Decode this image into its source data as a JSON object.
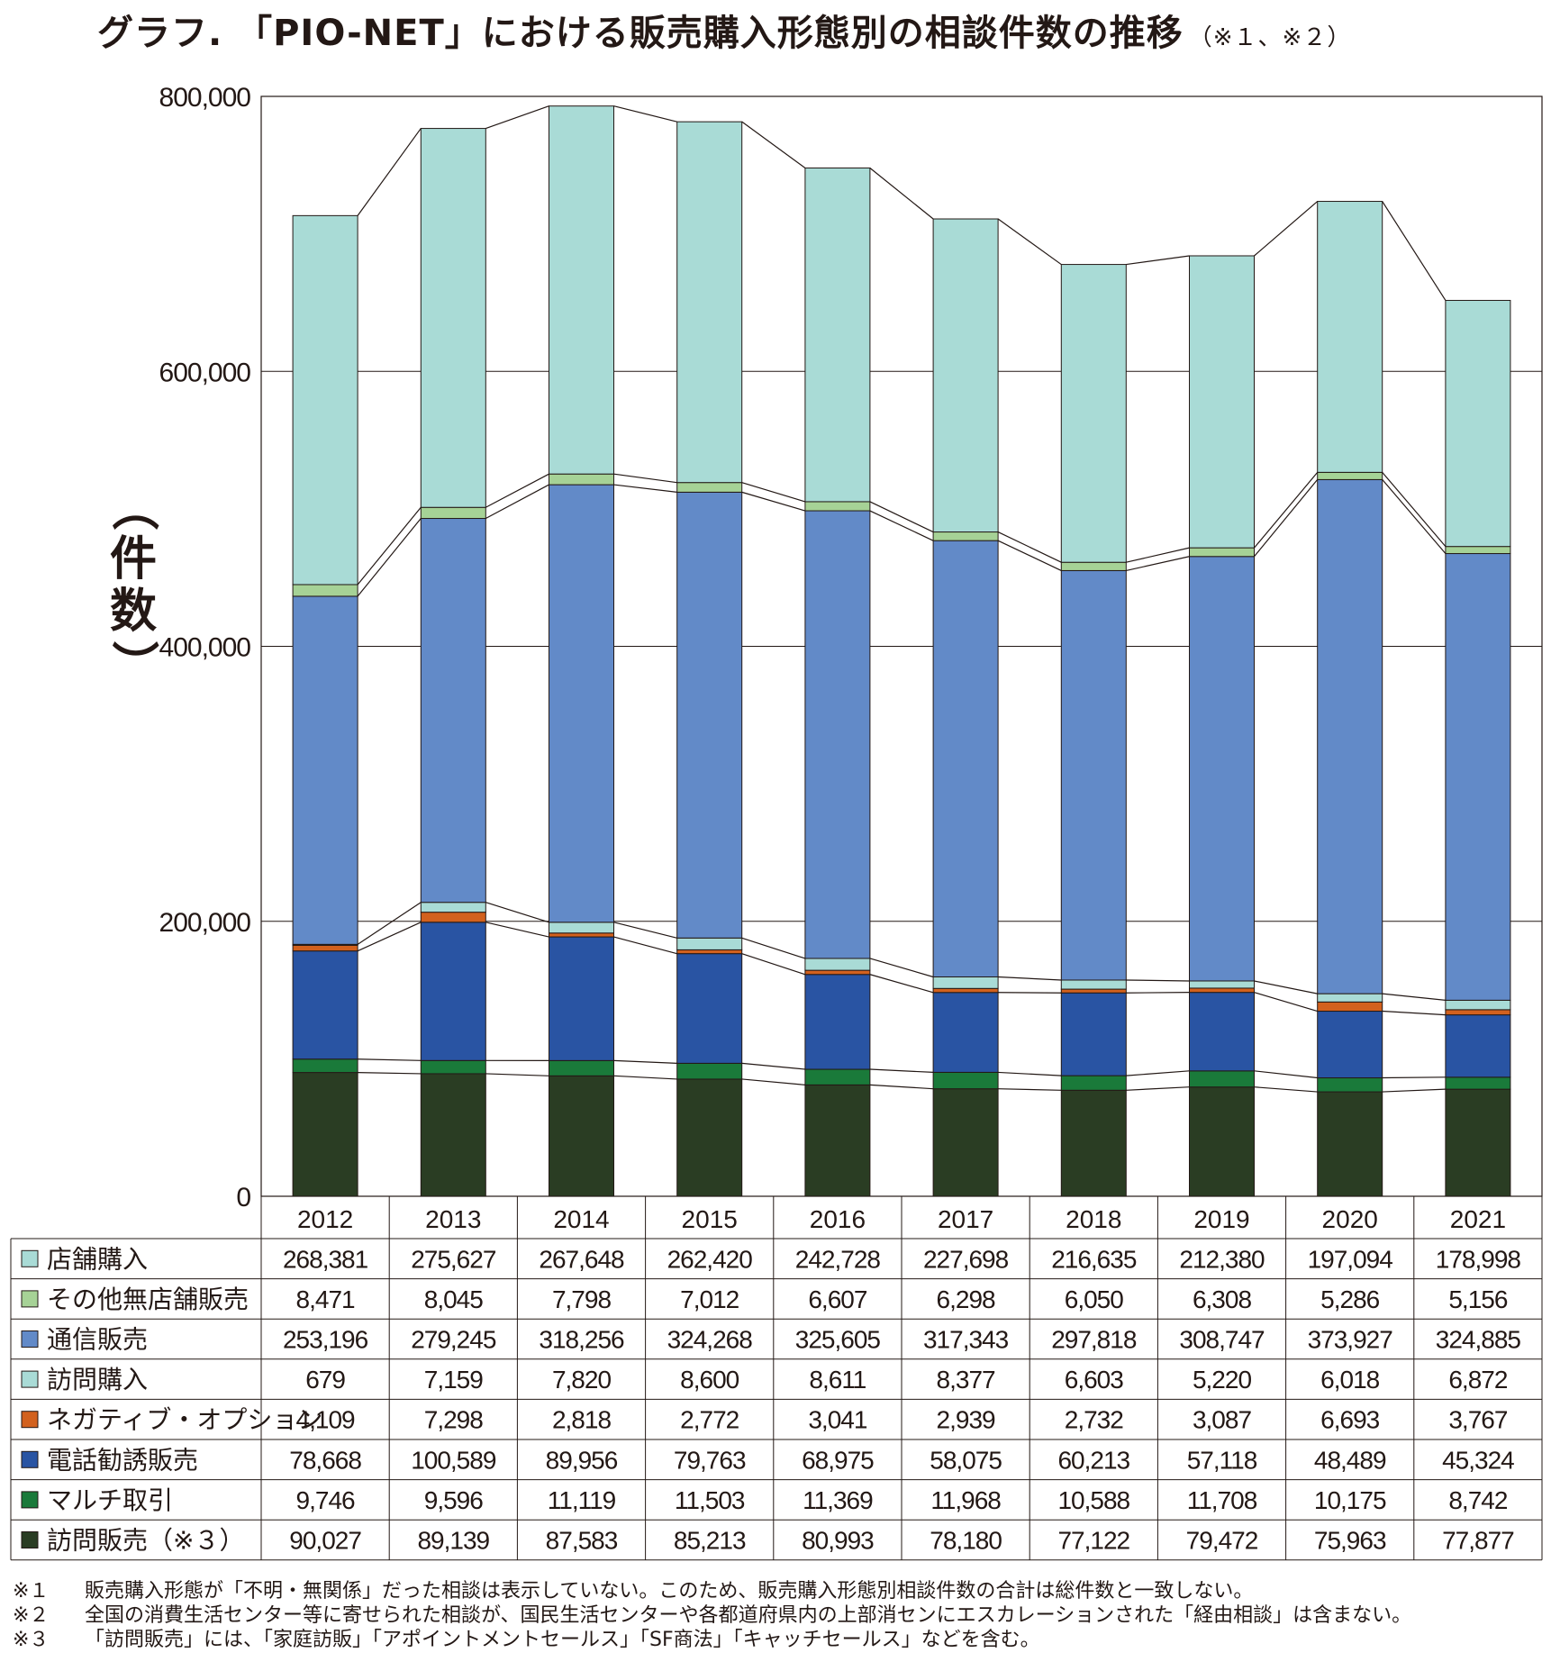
{
  "title": "グラフ. 「PIO-NET」における販売購入形態別の相談件数の推移",
  "title_note": "（※１、※２）",
  "chart_data": {
    "type": "bar",
    "stacked": true,
    "title": "グラフ. 「PIO-NET」における販売購入形態別の相談件数の推移",
    "xlabel": "",
    "ylabel": "（件数）",
    "ylim": [
      0,
      800000
    ],
    "yticks": [
      0,
      200000,
      400000,
      600000,
      800000
    ],
    "ytick_labels": [
      "0",
      "200,000",
      "400,000",
      "600,000",
      "800,000"
    ],
    "grid": true,
    "categories": [
      "2012",
      "2013",
      "2014",
      "2015",
      "2016",
      "2017",
      "2018",
      "2019",
      "2020",
      "2021"
    ],
    "series": [
      {
        "name": "訪問販売（※３）",
        "color": "#2a3d23",
        "values": [
          90027,
          89139,
          87583,
          85213,
          80993,
          78180,
          77122,
          79472,
          75963,
          77877
        ],
        "labels": [
          "90,027",
          "89,139",
          "87,583",
          "85,213",
          "80,993",
          "78,180",
          "77,122",
          "79,472",
          "75,963",
          "77,877"
        ]
      },
      {
        "name": "マルチ取引",
        "color": "#1a7a3a",
        "values": [
          9746,
          9596,
          11119,
          11503,
          11369,
          11968,
          10588,
          11708,
          10175,
          8742
        ],
        "labels": [
          "9,746",
          "9,596",
          "11,119",
          "11,503",
          "11,369",
          "11,968",
          "10,588",
          "11,708",
          "10,175",
          "8,742"
        ]
      },
      {
        "name": "電話勧誘販売",
        "color": "#2954a3",
        "values": [
          78668,
          100589,
          89956,
          79763,
          68975,
          58075,
          60213,
          57118,
          48489,
          45324
        ],
        "labels": [
          "78,668",
          "100,589",
          "89,956",
          "79,763",
          "68,975",
          "58,075",
          "60,213",
          "57,118",
          "48,489",
          "45,324"
        ]
      },
      {
        "name": "ネガティブ・オプション",
        "color": "#d2611e",
        "values": [
          4109,
          7298,
          2818,
          2772,
          3041,
          2939,
          2732,
          3087,
          6693,
          3767
        ],
        "labels": [
          "4,109",
          "7,298",
          "2,818",
          "2,772",
          "3,041",
          "2,939",
          "2,732",
          "3,087",
          "6,693",
          "3,767"
        ]
      },
      {
        "name": "訪問購入",
        "color": "#a9dbd6",
        "values": [
          679,
          7159,
          7820,
          8600,
          8611,
          8377,
          6603,
          5220,
          6018,
          6872
        ],
        "labels": [
          "679",
          "7,159",
          "7,820",
          "8,600",
          "8,611",
          "8,377",
          "6,603",
          "5,220",
          "6,018",
          "6,872"
        ]
      },
      {
        "name": "通信販売",
        "color": "#628ac8",
        "values": [
          253196,
          279245,
          318256,
          324268,
          325605,
          317343,
          297818,
          308747,
          373927,
          324885
        ],
        "labels": [
          "253,196",
          "279,245",
          "318,256",
          "324,268",
          "325,605",
          "317,343",
          "297,818",
          "308,747",
          "373,927",
          "324,885"
        ]
      },
      {
        "name": "その他無店舗販売",
        "color": "#a6d296",
        "values": [
          8471,
          8045,
          7798,
          7012,
          6607,
          6298,
          6050,
          6308,
          5286,
          5156
        ],
        "labels": [
          "8,471",
          "8,045",
          "7,798",
          "7,012",
          "6,607",
          "6,298",
          "6,050",
          "6,308",
          "5,286",
          "5,156"
        ]
      },
      {
        "name": "店舗購入",
        "color": "#a9dbd6",
        "values": [
          268381,
          275627,
          267648,
          262420,
          242728,
          227698,
          216635,
          212380,
          197094,
          178998
        ],
        "labels": [
          "268,381",
          "275,627",
          "267,648",
          "262,420",
          "242,728",
          "227,698",
          "216,635",
          "212,380",
          "197,094",
          "178,998"
        ]
      }
    ],
    "table_row_order": [
      "店舗購入",
      "その他無店舗販売",
      "通信販売",
      "訪問購入",
      "ネガティブ・オプション",
      "電話勧誘販売",
      "マルチ取引",
      "訪問販売（※３）"
    ]
  },
  "notes": [
    {
      "mark": "※１",
      "text": "販売購入形態が「不明・無関係」だった相談は表示していない。このため、販売購入形態別相談件数の合計は総件数と一致しない。"
    },
    {
      "mark": "※２",
      "text": "全国の消費生活センター等に寄せられた相談が、国民生活センターや各都道府県内の上部消センにエスカレーションされた「経由相談」は含まない。"
    },
    {
      "mark": "※３",
      "text": "「訪問販売」には、「家庭訪販」「アポイントメントセールス」「SF商法」「キャッチセールス」などを含む。"
    }
  ]
}
